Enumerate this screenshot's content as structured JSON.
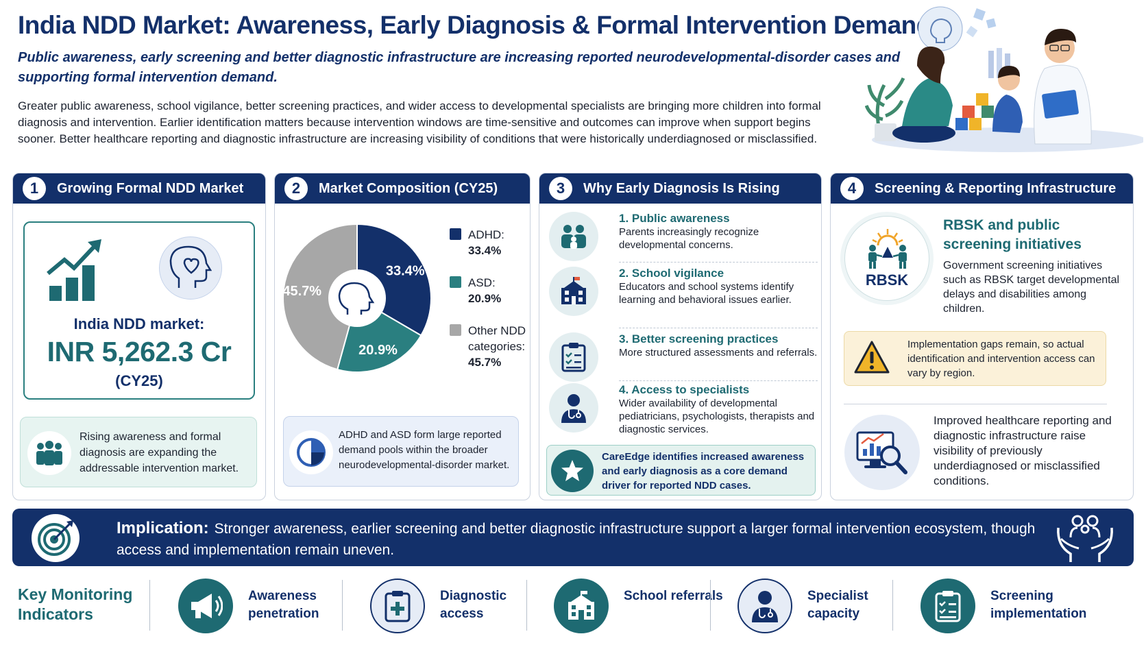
{
  "header": {
    "title": "India NDD Market: Awareness, Early Diagnosis & Formal Intervention Demand",
    "subtitle": "Public awareness, early screening and better diagnostic infrastructure are increasing reported neurodevelopmental-disorder cases and supporting formal intervention demand.",
    "intro": "Greater public awareness, school vigilance, better screening practices, and wider access to developmental specialists are bringing more children into formal diagnosis and intervention. Earlier identification matters because intervention windows are time-sensitive and outcomes can improve when support begins sooner. Better healthcare reporting and diagnostic infrastructure are increasing visibility of conditions that were historically underdiagnosed or misclassified."
  },
  "panel1": {
    "number": "1",
    "title": "Growing Formal NDD Market",
    "market_label": "India NDD market:",
    "market_value": "INR 5,262.3 Cr",
    "market_year": "(CY25)",
    "note": "Rising awareness and formal diagnosis are expanding the addressable intervention market."
  },
  "panel2": {
    "number": "2",
    "title": "Market Composition (CY25)",
    "note": "ADHD and ASD form large reported demand pools within the broader neurodevelopmental-disorder market.",
    "legend": [
      {
        "label": "ADHD:",
        "value": "33.4%"
      },
      {
        "label": "ASD:",
        "value": "20.9%"
      },
      {
        "label": "Other NDD categories:",
        "value": "45.7%"
      }
    ]
  },
  "chart_data": {
    "type": "pie",
    "title": "Market Composition (CY25)",
    "categories": [
      "ADHD",
      "ASD",
      "Other NDD categories"
    ],
    "values": [
      33.4,
      20.9,
      45.7
    ],
    "labels": [
      "33.4%",
      "20.9%",
      "45.7%"
    ],
    "colors": [
      "#13306a",
      "#2a7f80",
      "#a7a7a7"
    ],
    "legend_position": "right"
  },
  "panel3": {
    "number": "3",
    "title": "Why Early Diagnosis Is Rising",
    "drivers": [
      {
        "title": "1. Public awareness",
        "desc": "Parents increasingly recognize developmental concerns."
      },
      {
        "title": "2. School vigilance",
        "desc": "Educators and school systems identify learning and behavioral issues earlier."
      },
      {
        "title": "3. Better screening practices",
        "desc": "More structured assessments and referrals."
      },
      {
        "title": "4. Access to specialists",
        "desc": "Wider availability of developmental pediatricians, psychologists, therapists and diagnostic services."
      }
    ],
    "note": "CareEdge identifies increased awareness and early diagnosis as a core demand driver for reported NDD cases."
  },
  "panel4": {
    "number": "4",
    "title": "Screening & Reporting Infrastructure",
    "badge": "RBSK",
    "rbsk_title": "RBSK and public screening initiatives",
    "rbsk_desc": "Government screening initiatives such as RBSK target developmental delays and disabilities among children.",
    "warning": "Implementation gaps remain, so actual identification and intervention access can vary by region.",
    "reporting": "Improved healthcare reporting and diagnostic infrastructure raise visibility of previously underdiagnosed or misclassified conditions."
  },
  "implication": {
    "head": "Implication:",
    "text": "Stronger awareness, earlier screening and better diagnostic infrastructure support a larger formal intervention ecosystem, though access and implementation remain uneven."
  },
  "indicators": {
    "title": "Key Monitoring Indicators",
    "items": [
      {
        "label": "Awareness penetration",
        "icon": "megaphone-icon"
      },
      {
        "label": "Diagnostic access",
        "icon": "clipboard-medical-icon"
      },
      {
        "label": "School referrals",
        "icon": "school-icon"
      },
      {
        "label": "Specialist capacity",
        "icon": "doctor-icon"
      },
      {
        "label": "Screening implementation",
        "icon": "checklist-icon"
      }
    ]
  },
  "colors": {
    "navy": "#13306a",
    "teal": "#1e6a72",
    "grey": "#a7a7a7",
    "warning_bg": "#fbf1d9"
  }
}
